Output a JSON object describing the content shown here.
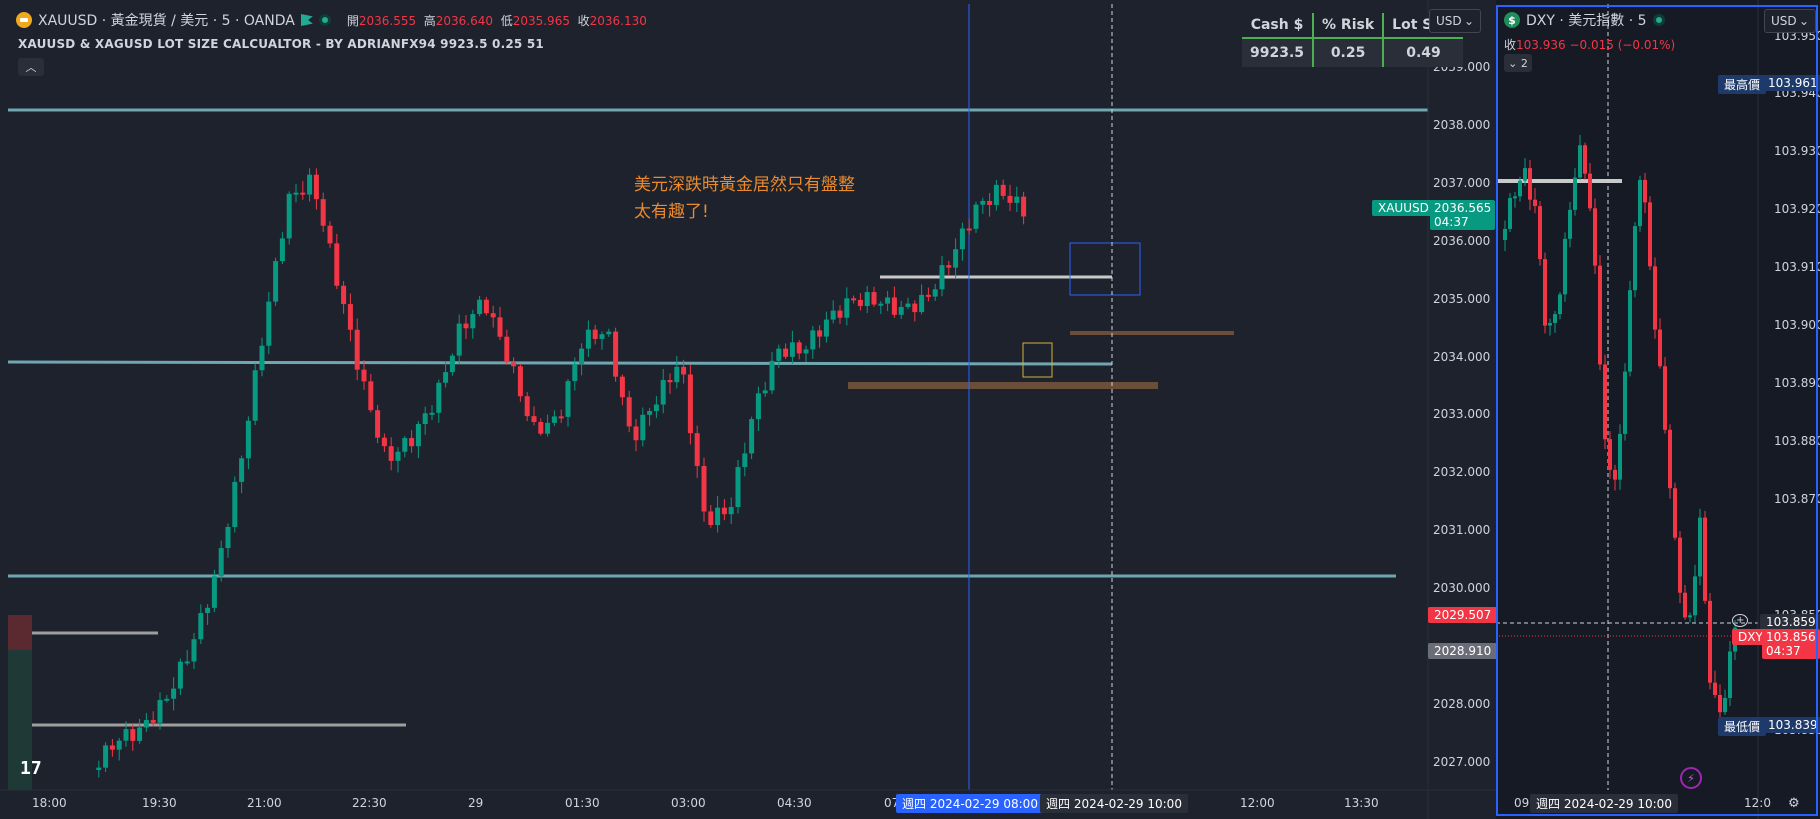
{
  "main_chart": {
    "symbol_icon": "gold-coin-icon",
    "title": "XAUUSD · 黃金現貨 / 美元 · 5 · OANDA",
    "ohlc": [
      {
        "label": "開",
        "value": "2036.555"
      },
      {
        "label": "高",
        "value": "2036.640"
      },
      {
        "label": "低",
        "value": "2035.965"
      },
      {
        "label": "收",
        "value": "2036.130"
      }
    ],
    "indicator_title": "XAUUSD & XAGUSD LOT SIZE CALCUALTOR - BY ADRIANFX94 9923.5 0.25 51",
    "collapse_icon": "chevron-up-icon",
    "currency": "USD",
    "annotation_line1": "美元深跌時黃金居然只有盤整",
    "annotation_line2": "太有趣了!",
    "lot_table": {
      "headers": [
        "Cash $",
        "% Risk",
        "Lot Size"
      ],
      "values": [
        "9923.5",
        "0.25",
        "0.49"
      ]
    },
    "price_labels": [
      "2039.000",
      "2038.000",
      "2037.000",
      "2036.000",
      "2035.000",
      "2034.000",
      "2033.000",
      "2032.000",
      "2031.000",
      "2030.000",
      "2028.000",
      "2027.000"
    ],
    "price_values": [
      2039,
      2038,
      2037,
      2036,
      2035,
      2034,
      2033,
      2032,
      2031,
      2030,
      2028,
      2027
    ],
    "current_symbol_tag": "XAUUSD",
    "current_price": "2036.565",
    "countdown": "04:37",
    "red_tag": "2029.507",
    "gray_tag": "2028.910",
    "time_labels": [
      "18:00",
      "19:30",
      "21:00",
      "22:30",
      "29",
      "01:30",
      "03:00",
      "04:30",
      "07",
      "12:00",
      "13:30"
    ],
    "crosshair_blue_label": "週四 2024-02-29   08:00",
    "crosshair_gray_label": "週四 2024-02-29   10:00",
    "colors": {
      "up": "#089981",
      "down": "#f23645",
      "level": "#6fa6b0",
      "accent": "#2962ff"
    }
  },
  "dxy_chart": {
    "symbol_icon": "dollar-icon",
    "title": "DXY · 美元指數 · 5",
    "close_label": "收",
    "close_value": "103.936",
    "change": "−0.015 (−0.01%)",
    "level_button": "2",
    "currency": "USD",
    "price_labels": [
      "103.950",
      "103.940",
      "103.930",
      "103.920",
      "103.910",
      "103.900",
      "103.890",
      "103.880",
      "103.870",
      "103.850",
      "103.830"
    ],
    "price_values": [
      103.95,
      103.94,
      103.93,
      103.92,
      103.91,
      103.9,
      103.89,
      103.88,
      103.87,
      103.85,
      103.83
    ],
    "high_label": "最高價",
    "high_value": "103.961",
    "low_label": "最低價",
    "low_value": "103.839",
    "crosshair_value": "103.859",
    "symbol_tag": "DXY",
    "current_price": "103.856",
    "countdown": "04:37",
    "time_label": "週四 2024-02-29   10:00",
    "time_left": "09",
    "time_right": "12:0"
  }
}
